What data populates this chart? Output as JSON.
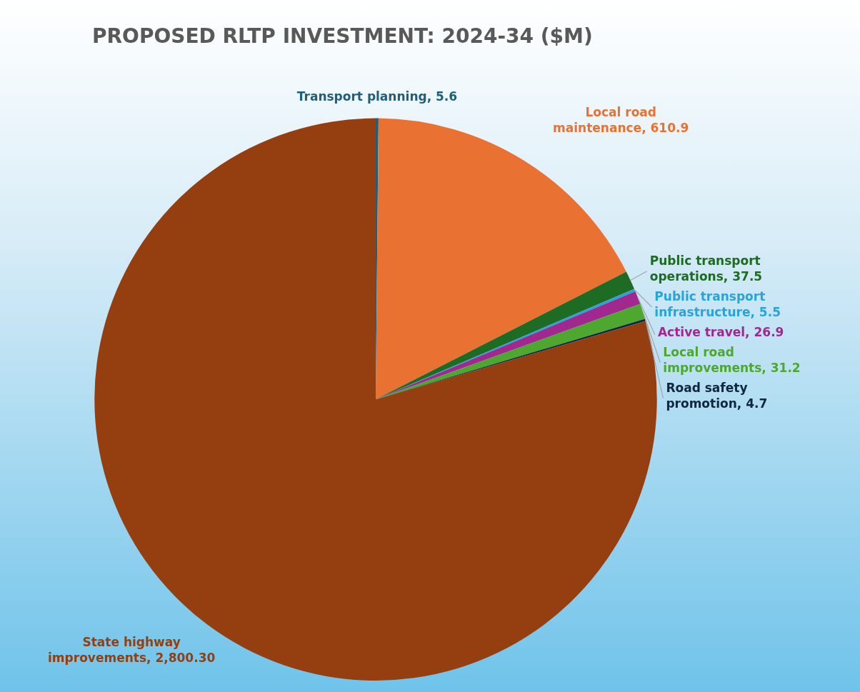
{
  "chart_data": {
    "type": "pie",
    "title": "PROPOSED RLTP INVESTMENT: 2024-34 ($M)",
    "categories": [
      "Transport planning",
      "Local road maintenance",
      "Public transport operations",
      "Public transport infrastructure",
      "Active travel",
      "Local road improvements",
      "Road safety promotion",
      "State highway improvements"
    ],
    "values": [
      5.6,
      610.9,
      37.5,
      5.5,
      26.9,
      31.2,
      4.7,
      2800.3
    ],
    "value_labels": [
      "5.6",
      "610.9",
      "37.5",
      "5.5",
      "26.9",
      "31.2",
      "4.7",
      "2,800.30"
    ],
    "colors": [
      "#1f5f7a",
      "#e97132",
      "#1e6b24",
      "#2aa3d8",
      "#a0288f",
      "#4ea72e",
      "#0e2841",
      "#953f10"
    ]
  }
}
